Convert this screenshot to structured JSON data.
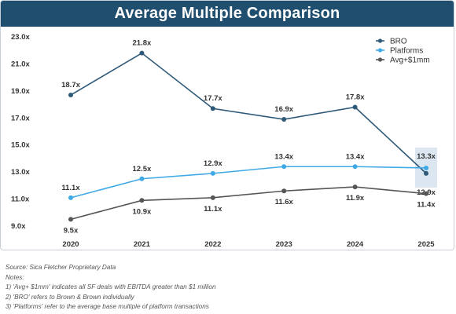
{
  "title": "Average Multiple Comparison",
  "chart_data": {
    "type": "line",
    "categories": [
      "2020",
      "2021",
      "2022",
      "2023",
      "2024",
      "2025"
    ],
    "y_ticks": [
      "23.0x",
      "21.0x",
      "19.0x",
      "17.0x",
      "15.0x",
      "13.0x",
      "11.0x",
      "9.0x"
    ],
    "ylim": [
      9.0,
      23.0
    ],
    "grid": false,
    "legend_position": "top-right",
    "series": [
      {
        "name": "BRO",
        "values": [
          18.7,
          21.8,
          17.7,
          16.9,
          17.8,
          12.9
        ],
        "labels": [
          "18.7x",
          "21.8x",
          "17.7x",
          "16.9x",
          "17.8x",
          "12.9x"
        ],
        "color": "#2e5978"
      },
      {
        "name": "Platforms",
        "values": [
          11.1,
          12.5,
          12.9,
          13.4,
          13.4,
          13.3
        ],
        "labels": [
          "11.1x",
          "12.5x",
          "12.9x",
          "13.4x",
          "13.4x",
          "13.3x"
        ],
        "color": "#3fa9e6"
      },
      {
        "name": "Avg+$1mm",
        "values": [
          9.5,
          10.9,
          11.1,
          11.6,
          11.9,
          11.4
        ],
        "labels": [
          "9.5x",
          "10.9x",
          "11.1x",
          "11.6x",
          "11.9x",
          "11.4x"
        ],
        "color": "#555555"
      }
    ]
  },
  "notes": {
    "source": "Source: Sica Fletcher Proprietary Data",
    "heading": "Notes:",
    "items": [
      "1) 'Avg+ $1mm' indicates all SF deals with EBITDA greater than $1 million",
      "2) 'BRO' refers to Brown & Brown individually",
      "3) 'Platforms'  refer to the average base multiple of platform transactions"
    ]
  }
}
